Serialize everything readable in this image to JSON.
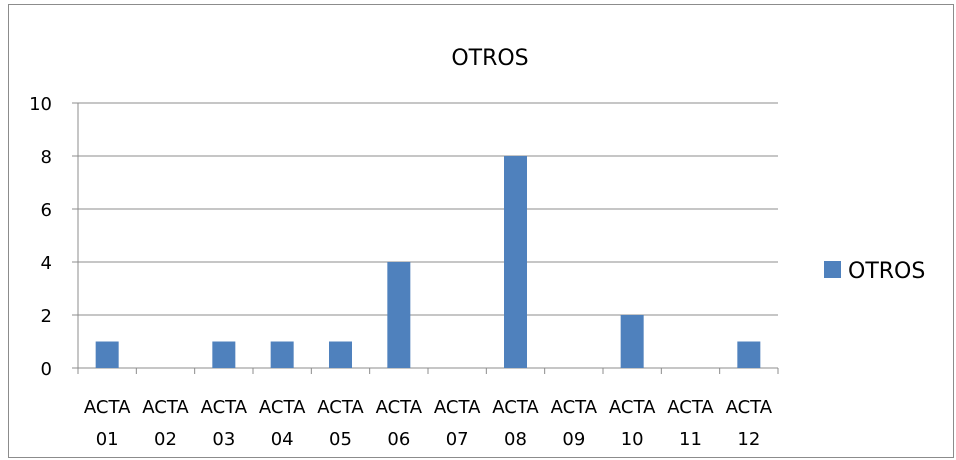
{
  "chart_data": {
    "type": "bar",
    "title": "OTROS",
    "categories": [
      [
        "ACTA",
        "01"
      ],
      [
        "ACTA",
        "02"
      ],
      [
        "ACTA",
        "03"
      ],
      [
        "ACTA",
        "04"
      ],
      [
        "ACTA",
        "05"
      ],
      [
        "ACTA",
        "06"
      ],
      [
        "ACTA",
        "07"
      ],
      [
        "ACTA",
        "08"
      ],
      [
        "ACTA",
        "09"
      ],
      [
        "ACTA",
        "10"
      ],
      [
        "ACTA",
        "11"
      ],
      [
        "ACTA",
        "12"
      ]
    ],
    "series": [
      {
        "name": "OTROS",
        "values": [
          1,
          0,
          1,
          1,
          1,
          4,
          0,
          8,
          0,
          2,
          0,
          1
        ],
        "color": "#4f81bd"
      }
    ],
    "ylim": [
      0,
      10
    ],
    "yticks": [
      "0",
      "2",
      "4",
      "6",
      "8",
      "10"
    ],
    "grid": true,
    "legend": "right",
    "xlabel": "",
    "ylabel": ""
  }
}
